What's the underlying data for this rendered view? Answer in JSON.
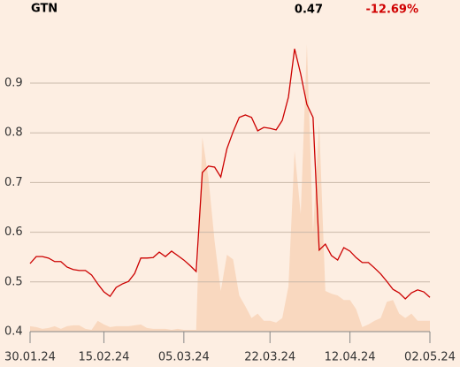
{
  "chart_data": {
    "type": "line",
    "title": "GTN",
    "last": 0.47,
    "change": "-12.69%",
    "change_color": "#d00000",
    "categories": [
      "30.01.24",
      null,
      null,
      null,
      null,
      null,
      null,
      null,
      null,
      null,
      null,
      null,
      "15.02.24",
      null,
      null,
      null,
      null,
      null,
      null,
      null,
      null,
      null,
      null,
      null,
      null,
      "05.03.24",
      null,
      null,
      null,
      null,
      null,
      null,
      null,
      null,
      null,
      null,
      null,
      null,
      null,
      "22.03.24",
      null,
      null,
      null,
      null,
      null,
      null,
      null,
      null,
      null,
      null,
      null,
      null,
      "12.04.24",
      null,
      null,
      null,
      null,
      null,
      null,
      null,
      null,
      null,
      null,
      null,
      null,
      "02.05.24"
    ],
    "series": [
      {
        "color": "#cc0000",
        "values": [
          0.537,
          0.551,
          0.551,
          0.548,
          0.541,
          0.541,
          0.53,
          0.525,
          0.523,
          0.523,
          0.514,
          0.496,
          0.48,
          0.471,
          0.489,
          0.496,
          0.501,
          0.517,
          0.548,
          0.548,
          0.549,
          0.56,
          0.551,
          0.562,
          0.553,
          0.544,
          0.533,
          0.521,
          0.72,
          0.733,
          0.731,
          0.711,
          0.768,
          0.802,
          0.831,
          0.836,
          0.831,
          0.804,
          0.811,
          0.809,
          0.806,
          0.825,
          0.872,
          0.969,
          0.918,
          0.857,
          0.831,
          0.564,
          0.576,
          0.553,
          0.544,
          0.569,
          0.562,
          0.549,
          0.539,
          0.539,
          0.528,
          0.516,
          0.501,
          0.485,
          0.478,
          0.466,
          0.478,
          0.484,
          0.48,
          0.469
        ]
      },
      {
        "type": "area",
        "axis": "y2",
        "color": "#f9d8bf",
        "values": [
          6,
          5,
          3,
          4,
          6,
          3,
          6,
          7,
          7,
          3,
          2,
          12,
          8,
          5,
          6,
          6,
          6,
          7,
          8,
          4,
          3,
          3,
          3,
          2,
          3,
          2,
          2,
          2,
          215,
          170,
          100,
          45,
          85,
          80,
          40,
          28,
          15,
          20,
          12,
          12,
          10,
          15,
          50,
          200,
          130,
          318,
          110,
          230,
          45,
          42,
          40,
          35,
          35,
          25,
          5,
          8,
          12,
          15,
          33,
          35,
          20,
          15,
          20,
          12,
          12,
          12
        ]
      }
    ],
    "ylim": [
      0.4,
      1.0
    ],
    "yticks": [
      0.4,
      0.5,
      0.6,
      0.7,
      0.8,
      0.9
    ],
    "y2lim": [
      0,
      330
    ],
    "grid": true
  }
}
